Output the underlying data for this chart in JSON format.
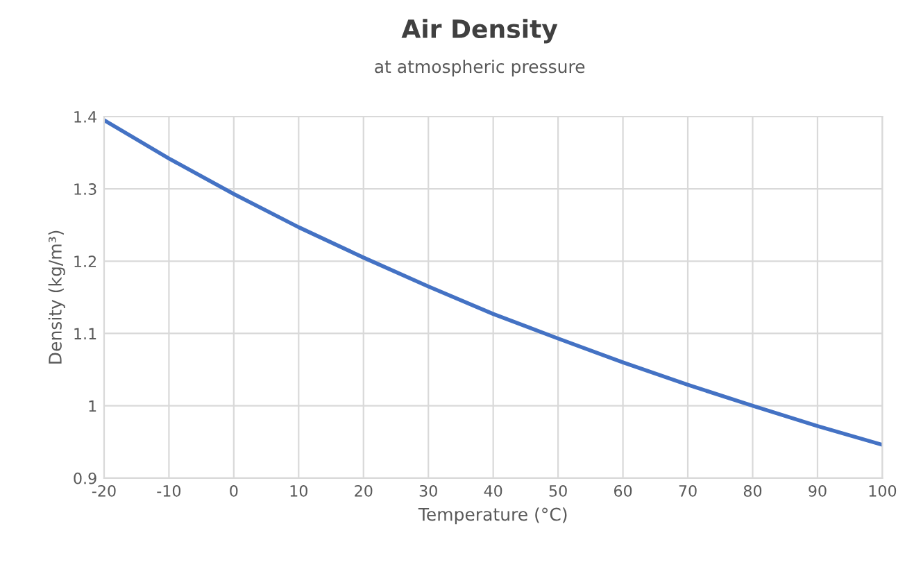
{
  "chart_data": {
    "type": "line",
    "title": "Air Density",
    "subtitle": "at atmospheric pressure",
    "xlabel": "Temperature (°C)",
    "ylabel": "Density (kg/m³)",
    "x": [
      -20,
      -10,
      0,
      10,
      20,
      30,
      40,
      50,
      60,
      70,
      80,
      90,
      100
    ],
    "series": [
      {
        "color": "#4472c4",
        "values": [
          1.395,
          1.342,
          1.293,
          1.247,
          1.205,
          1.165,
          1.127,
          1.093,
          1.06,
          1.029,
          1.0,
          0.972,
          0.946
        ]
      }
    ],
    "xlim": [
      -20,
      100
    ],
    "xticks": [
      -20,
      -10,
      0,
      10,
      20,
      30,
      40,
      50,
      60,
      70,
      80,
      90,
      100
    ],
    "ylim": [
      0.9,
      1.4
    ],
    "yticks": [
      0.9,
      1,
      1.1,
      1.2,
      1.3,
      1.4
    ],
    "grid": true,
    "marker": "none",
    "line_style": "solid"
  }
}
